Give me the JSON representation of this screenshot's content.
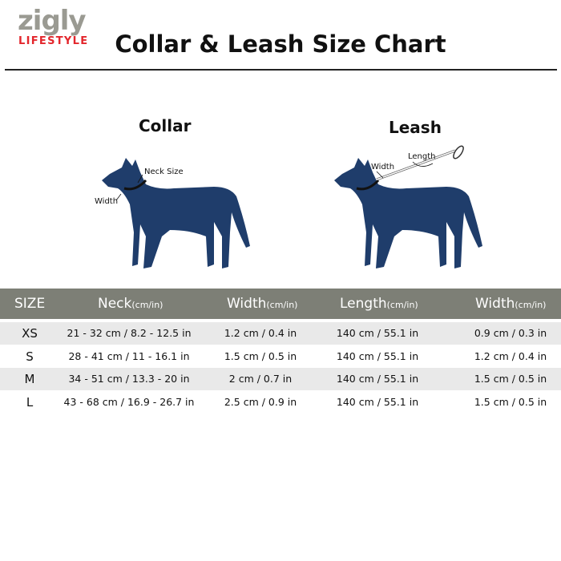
{
  "brand": {
    "logo_word": "zigly",
    "logo_sub": "LIFESTYLE",
    "accent": "#e3262c"
  },
  "title": "Collar & Leash Size Chart",
  "collar": {
    "heading": "Collar",
    "neck_label": "Neck Size",
    "width_label": "Width"
  },
  "leash": {
    "heading": "Leash",
    "width_label": "Width",
    "length_label": "Length"
  },
  "colors": {
    "dog": "#1f3d6b",
    "header": "#7d7f76"
  },
  "table": {
    "headers": [
      {
        "main": "SIZE",
        "unit": ""
      },
      {
        "main": "Neck",
        "unit": "(cm/in)"
      },
      {
        "main": "Width",
        "unit": "(cm/in)"
      },
      {
        "main": "Length",
        "unit": "(cm/in)"
      },
      {
        "main": "Width",
        "unit": "(cm/in)"
      }
    ],
    "rows": [
      [
        "XS",
        "21 - 32 cm / 8.2 - 12.5 in",
        "1.2 cm / 0.4 in",
        "140 cm / 55.1 in",
        "0.9 cm / 0.3 in"
      ],
      [
        "S",
        "28 - 41 cm / 11 - 16.1 in",
        "1.5 cm / 0.5 in",
        "140 cm / 55.1 in",
        "1.2 cm / 0.4 in"
      ],
      [
        "M",
        "34 - 51 cm / 13.3 - 20 in",
        "2 cm / 0.7 in",
        "140 cm / 55.1 in",
        "1.5 cm / 0.5 in"
      ],
      [
        "L",
        "43 - 68 cm / 16.9 - 26.7 in",
        "2.5 cm / 0.9 in",
        "140 cm / 55.1 in",
        "1.5 cm / 0.5 in"
      ]
    ]
  }
}
